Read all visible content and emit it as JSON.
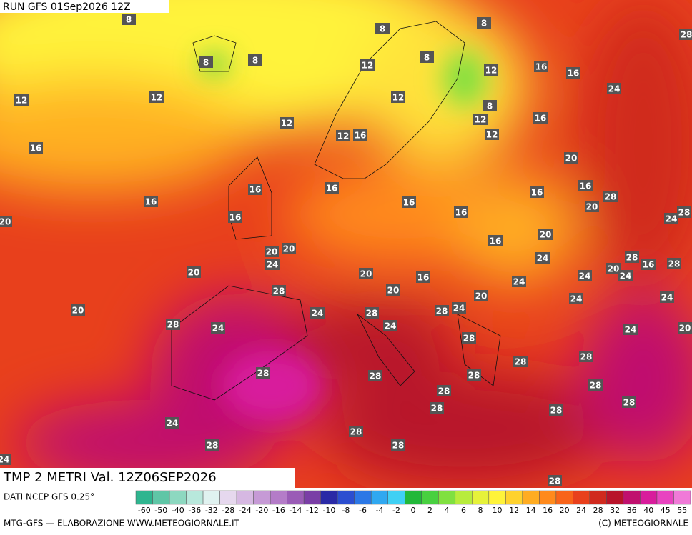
{
  "header": {
    "run": "RUN GFS 01Sep2026 12Z"
  },
  "map": {
    "labels": [
      8,
      8,
      8,
      28,
      8,
      8,
      8,
      12,
      12,
      16,
      16,
      12,
      12,
      12,
      24,
      8,
      12,
      12,
      16,
      12,
      16,
      12,
      16,
      20,
      16,
      16,
      16,
      16,
      16,
      16,
      28,
      20,
      20,
      16,
      16,
      24,
      28,
      20,
      16,
      20,
      20,
      24,
      28,
      24,
      20,
      20,
      16,
      20,
      24,
      16,
      28,
      24,
      24,
      28,
      20,
      20,
      24,
      24,
      20,
      24,
      28,
      28,
      24,
      28,
      24,
      24,
      24,
      20,
      28,
      28,
      28,
      28,
      28,
      28,
      28,
      28,
      28,
      28,
      28,
      24,
      28,
      28,
      28,
      24,
      28
    ]
  },
  "footer": {
    "title": "TMP 2 METRI Val. 12Z06SEP2026",
    "source": "DATI NCEP GFS 0.25°",
    "credit": "MTG-GFS — ELABORAZIONE WWW.METEOGIORNALE.IT",
    "copyright": "(C) METEOGIORNALE"
  },
  "legend": {
    "ticks": [
      -60,
      -50,
      -40,
      -36,
      -32,
      -28,
      -24,
      -20,
      -16,
      -14,
      -12,
      -10,
      -8,
      -6,
      -4,
      -2,
      0,
      2,
      4,
      6,
      8,
      10,
      12,
      14,
      16,
      20,
      24,
      28,
      32,
      36,
      40,
      45,
      55
    ],
    "colors": [
      "#2fb58f",
      "#5fc6a6",
      "#8dd8c0",
      "#b8e8dc",
      "#e0f2f0",
      "#e6d8ee",
      "#d6b8e2",
      "#c69ad6",
      "#b47cc8",
      "#9a5cb6",
      "#7a3ea6",
      "#2a2aa6",
      "#2c4ed0",
      "#2c78e6",
      "#30a8f0",
      "#40d0f4",
      "#22b83a",
      "#48d040",
      "#80e040",
      "#b8ec3c",
      "#e6f23a",
      "#fff33a",
      "#ffd22e",
      "#ffac22",
      "#ff8a1c",
      "#f8641a",
      "#e8401c",
      "#d02a1e",
      "#b8142a",
      "#c0106e",
      "#d81c9c",
      "#e844c0",
      "#f07ad8"
    ]
  }
}
